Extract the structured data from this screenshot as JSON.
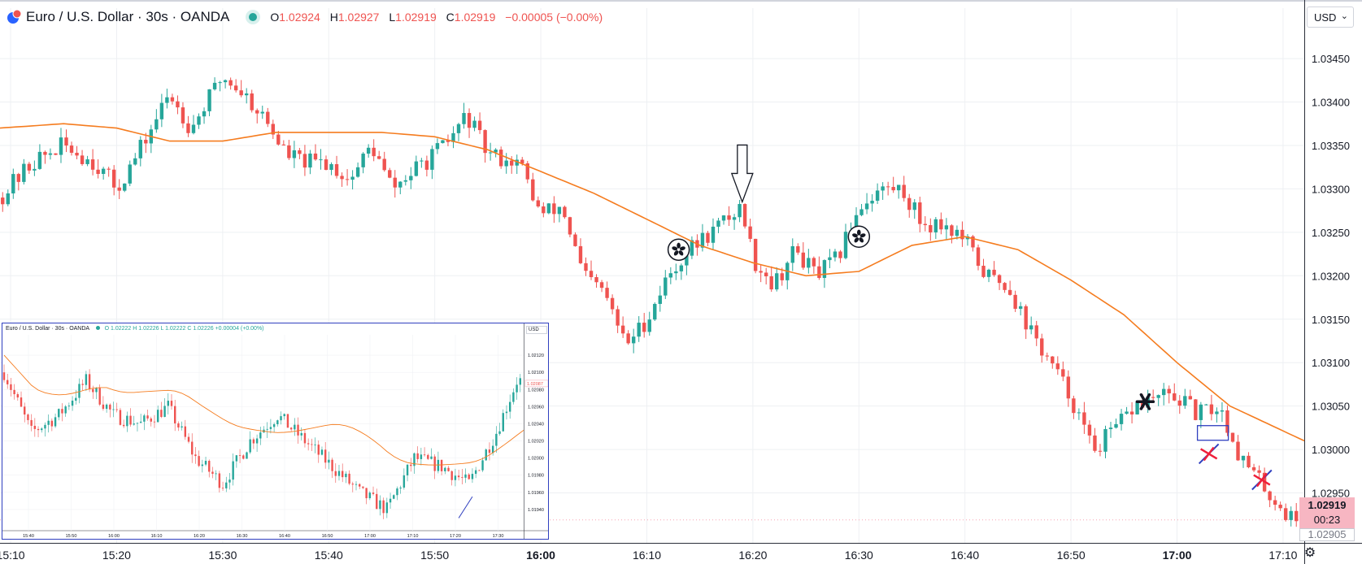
{
  "header": {
    "symbol": "Euro / U.S. Dollar · 30s · OANDA",
    "open_label": "O",
    "open": "1.02924",
    "high_label": "H",
    "high": "1.02927",
    "low_label": "L",
    "low": "1.02919",
    "close_label": "C",
    "close": "1.02919",
    "change": "−0.00005 (−0.00%)"
  },
  "currency_selector": "USD",
  "last_price": "1.02919",
  "countdown": "00:23",
  "low_price_tag": "1.02905",
  "colors": {
    "up": "#26a69a",
    "down": "#ef5350",
    "ma": "#f57c1f",
    "grid": "#eef0f3",
    "accent_blue": "#2f3fbf"
  },
  "chart_data": [
    {
      "type": "candlestick",
      "ylim": [
        1.029,
        1.0348
      ],
      "y_ticks": [
        "1.03450",
        "1.03400",
        "1.03350",
        "1.03300",
        "1.03250",
        "1.03200",
        "1.03150",
        "1.03100",
        "1.03050",
        "1.03000",
        "1.02950"
      ],
      "x_ticks": [
        {
          "label": "15:10",
          "bold": false
        },
        {
          "label": "15:20",
          "bold": false
        },
        {
          "label": "15:30",
          "bold": false
        },
        {
          "label": "15:40",
          "bold": false
        },
        {
          "label": "15:50",
          "bold": false
        },
        {
          "label": "16:00",
          "bold": true
        },
        {
          "label": "16:10",
          "bold": false
        },
        {
          "label": "16:20",
          "bold": false
        },
        {
          "label": "16:30",
          "bold": false
        },
        {
          "label": "16:40",
          "bold": false
        },
        {
          "label": "16:50",
          "bold": false
        },
        {
          "label": "17:00",
          "bold": true
        },
        {
          "label": "17:10",
          "bold": false
        }
      ],
      "x_range": [
        "15:09",
        "17:12"
      ],
      "close_path": [
        {
          "t": "15:09",
          "v": 1.0329
        },
        {
          "t": "15:12",
          "v": 1.0333
        },
        {
          "t": "15:15",
          "v": 1.0335
        },
        {
          "t": "15:18",
          "v": 1.0333
        },
        {
          "t": "15:20",
          "v": 1.033
        },
        {
          "t": "15:22",
          "v": 1.0334
        },
        {
          "t": "15:25",
          "v": 1.0341
        },
        {
          "t": "15:27",
          "v": 1.0337
        },
        {
          "t": "15:30",
          "v": 1.0343
        },
        {
          "t": "15:32",
          "v": 1.0341
        },
        {
          "t": "15:34",
          "v": 1.0338
        },
        {
          "t": "15:36",
          "v": 1.0334
        },
        {
          "t": "15:38",
          "v": 1.0333
        },
        {
          "t": "15:40",
          "v": 1.0333
        },
        {
          "t": "15:42",
          "v": 1.0331
        },
        {
          "t": "15:44",
          "v": 1.0335
        },
        {
          "t": "15:46",
          "v": 1.033
        },
        {
          "t": "15:49",
          "v": 1.0333
        },
        {
          "t": "15:51",
          "v": 1.0335
        },
        {
          "t": "15:53",
          "v": 1.03385
        },
        {
          "t": "15:55",
          "v": 1.0334
        },
        {
          "t": "15:58",
          "v": 1.0333
        },
        {
          "t": "16:00",
          "v": 1.0327
        },
        {
          "t": "16:02",
          "v": 1.0328
        },
        {
          "t": "16:04",
          "v": 1.032
        },
        {
          "t": "16:06",
          "v": 1.0318
        },
        {
          "t": "16:08",
          "v": 1.0312
        },
        {
          "t": "16:10",
          "v": 1.0315
        },
        {
          "t": "16:12",
          "v": 1.032
        },
        {
          "t": "16:14",
          "v": 1.0323
        },
        {
          "t": "16:16",
          "v": 1.0325
        },
        {
          "t": "16:18",
          "v": 1.0327
        },
        {
          "t": "16:19",
          "v": 1.0328
        },
        {
          "t": "16:20",
          "v": 1.0322
        },
        {
          "t": "16:22",
          "v": 1.0319
        },
        {
          "t": "16:24",
          "v": 1.0323
        },
        {
          "t": "16:26",
          "v": 1.032
        },
        {
          "t": "16:28",
          "v": 1.0322
        },
        {
          "t": "16:30",
          "v": 1.0328
        },
        {
          "t": "16:32",
          "v": 1.033
        },
        {
          "t": "16:34",
          "v": 1.033
        },
        {
          "t": "16:36",
          "v": 1.0326
        },
        {
          "t": "16:38",
          "v": 1.0326
        },
        {
          "t": "16:40",
          "v": 1.0324
        },
        {
          "t": "16:42",
          "v": 1.032
        },
        {
          "t": "16:44",
          "v": 1.0319
        },
        {
          "t": "16:46",
          "v": 1.0314
        },
        {
          "t": "16:48",
          "v": 1.031
        },
        {
          "t": "16:50",
          "v": 1.0306
        },
        {
          "t": "16:52",
          "v": 1.03
        },
        {
          "t": "16:54",
          "v": 1.0302
        },
        {
          "t": "16:56",
          "v": 1.0305
        },
        {
          "t": "16:58",
          "v": 1.0306
        },
        {
          "t": "17:00",
          "v": 1.0306
        },
        {
          "t": "17:02",
          "v": 1.0304
        },
        {
          "t": "17:04",
          "v": 1.0305
        },
        {
          "t": "17:06",
          "v": 1.0299
        },
        {
          "t": "17:08",
          "v": 1.0296
        },
        {
          "t": "17:10",
          "v": 1.0293
        },
        {
          "t": "17:11",
          "v": 1.02919
        }
      ],
      "ma_path": [
        {
          "t": "15:09",
          "v": 1.0337
        },
        {
          "t": "15:15",
          "v": 1.03375
        },
        {
          "t": "15:20",
          "v": 1.0337
        },
        {
          "t": "15:25",
          "v": 1.03355
        },
        {
          "t": "15:30",
          "v": 1.03355
        },
        {
          "t": "15:35",
          "v": 1.03365
        },
        {
          "t": "15:40",
          "v": 1.03365
        },
        {
          "t": "15:45",
          "v": 1.03365
        },
        {
          "t": "15:50",
          "v": 1.0336
        },
        {
          "t": "15:55",
          "v": 1.03345
        },
        {
          "t": "16:00",
          "v": 1.0332
        },
        {
          "t": "16:05",
          "v": 1.03295
        },
        {
          "t": "16:10",
          "v": 1.03265
        },
        {
          "t": "16:15",
          "v": 1.03235
        },
        {
          "t": "16:20",
          "v": 1.03215
        },
        {
          "t": "16:25",
          "v": 1.032
        },
        {
          "t": "16:30",
          "v": 1.03205
        },
        {
          "t": "16:35",
          "v": 1.03235
        },
        {
          "t": "16:40",
          "v": 1.03245
        },
        {
          "t": "16:45",
          "v": 1.0323
        },
        {
          "t": "16:50",
          "v": 1.03195
        },
        {
          "t": "16:55",
          "v": 1.03155
        },
        {
          "t": "17:00",
          "v": 1.031
        },
        {
          "t": "17:05",
          "v": 1.0305
        },
        {
          "t": "17:12",
          "v": 1.0301
        }
      ],
      "annotations": [
        {
          "kind": "down-arrow",
          "t": "16:19",
          "v": 1.03285
        },
        {
          "kind": "flower-circle",
          "t": "16:13",
          "v": 1.0323
        },
        {
          "kind": "flower-circle",
          "t": "16:30",
          "v": 1.03245
        },
        {
          "kind": "asterisk",
          "t": "16:57",
          "v": 1.03055
        },
        {
          "kind": "rectangle",
          "t": "17:02",
          "v": 1.0302
        },
        {
          "kind": "red-cross",
          "t": "17:03",
          "v": 1.02995
        },
        {
          "kind": "red-cross",
          "t": "17:08",
          "v": 1.02965
        }
      ]
    },
    {
      "type": "candlestick",
      "header": "Euro / U.S. Dollar · 30s · OANDA",
      "ohlc": "O 1.02222 H 1.02226 L 1.02222 C 1.02226 +0.00004 (+0.00%)",
      "currency": "USD",
      "price_tag": "1.02087",
      "y_ticks": [
        "1.02120",
        "1.02100",
        "1.02080",
        "1.02060",
        "1.02040",
        "1.02020",
        "1.02000",
        "1.01980",
        "1.01960",
        "1.01940"
      ],
      "x_ticks": [
        "15:40",
        "15:50",
        "16:00",
        "16:10",
        "16:20",
        "16:30",
        "16:40",
        "16:50",
        "17:00",
        "17:10",
        "17:20",
        "17:30"
      ],
      "ylim": [
        1.0192,
        1.0214
      ],
      "close_path": [
        {
          "i": 0,
          "v": 1.021
        },
        {
          "i": 8,
          "v": 1.0203
        },
        {
          "i": 16,
          "v": 1.0205
        },
        {
          "i": 24,
          "v": 1.0209
        },
        {
          "i": 32,
          "v": 1.0205
        },
        {
          "i": 40,
          "v": 1.0204
        },
        {
          "i": 48,
          "v": 1.0206
        },
        {
          "i": 56,
          "v": 1.02
        },
        {
          "i": 64,
          "v": 1.0197
        },
        {
          "i": 72,
          "v": 1.0202
        },
        {
          "i": 80,
          "v": 1.0205
        },
        {
          "i": 88,
          "v": 1.0202
        },
        {
          "i": 96,
          "v": 1.0199
        },
        {
          "i": 104,
          "v": 1.0196
        },
        {
          "i": 112,
          "v": 1.0194
        },
        {
          "i": 120,
          "v": 1.02
        },
        {
          "i": 128,
          "v": 1.0199
        },
        {
          "i": 136,
          "v": 1.0197
        },
        {
          "i": 144,
          "v": 1.0203
        },
        {
          "i": 150,
          "v": 1.0209
        }
      ]
    }
  ]
}
